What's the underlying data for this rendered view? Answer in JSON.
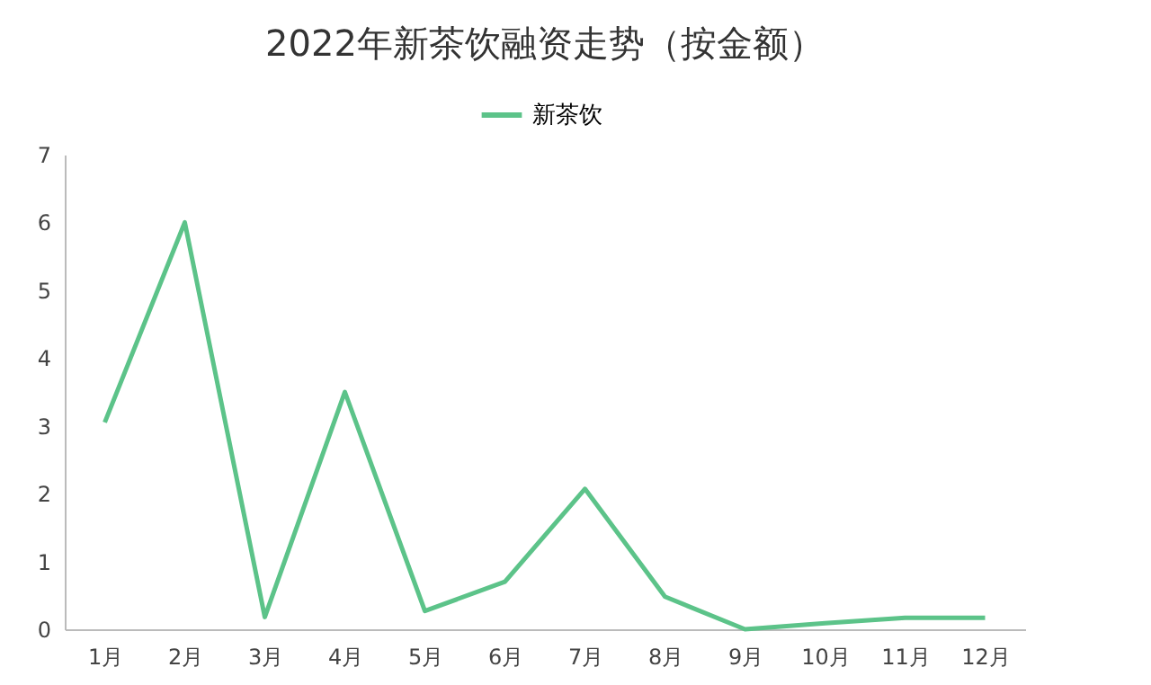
{
  "chart_data": {
    "type": "line",
    "title": "2022年新茶饮融资走势（按金额）",
    "categories": [
      "1月",
      "2月",
      "3月",
      "4月",
      "5月",
      "6月",
      "7月",
      "8月",
      "9月",
      "10月",
      "11月",
      "12月"
    ],
    "series": [
      {
        "name": "新茶饮",
        "color": "#5cc389",
        "values": [
          3.05,
          6.0,
          0.18,
          3.5,
          0.27,
          0.7,
          2.07,
          0.48,
          0.0,
          0.09,
          0.17,
          0.17
        ]
      }
    ],
    "ylim": [
      0,
      7
    ],
    "yticks": [
      0,
      1,
      2,
      3,
      4,
      5,
      6,
      7
    ],
    "grid": false,
    "legend": "top",
    "marker": "none",
    "line_style": "solid"
  }
}
